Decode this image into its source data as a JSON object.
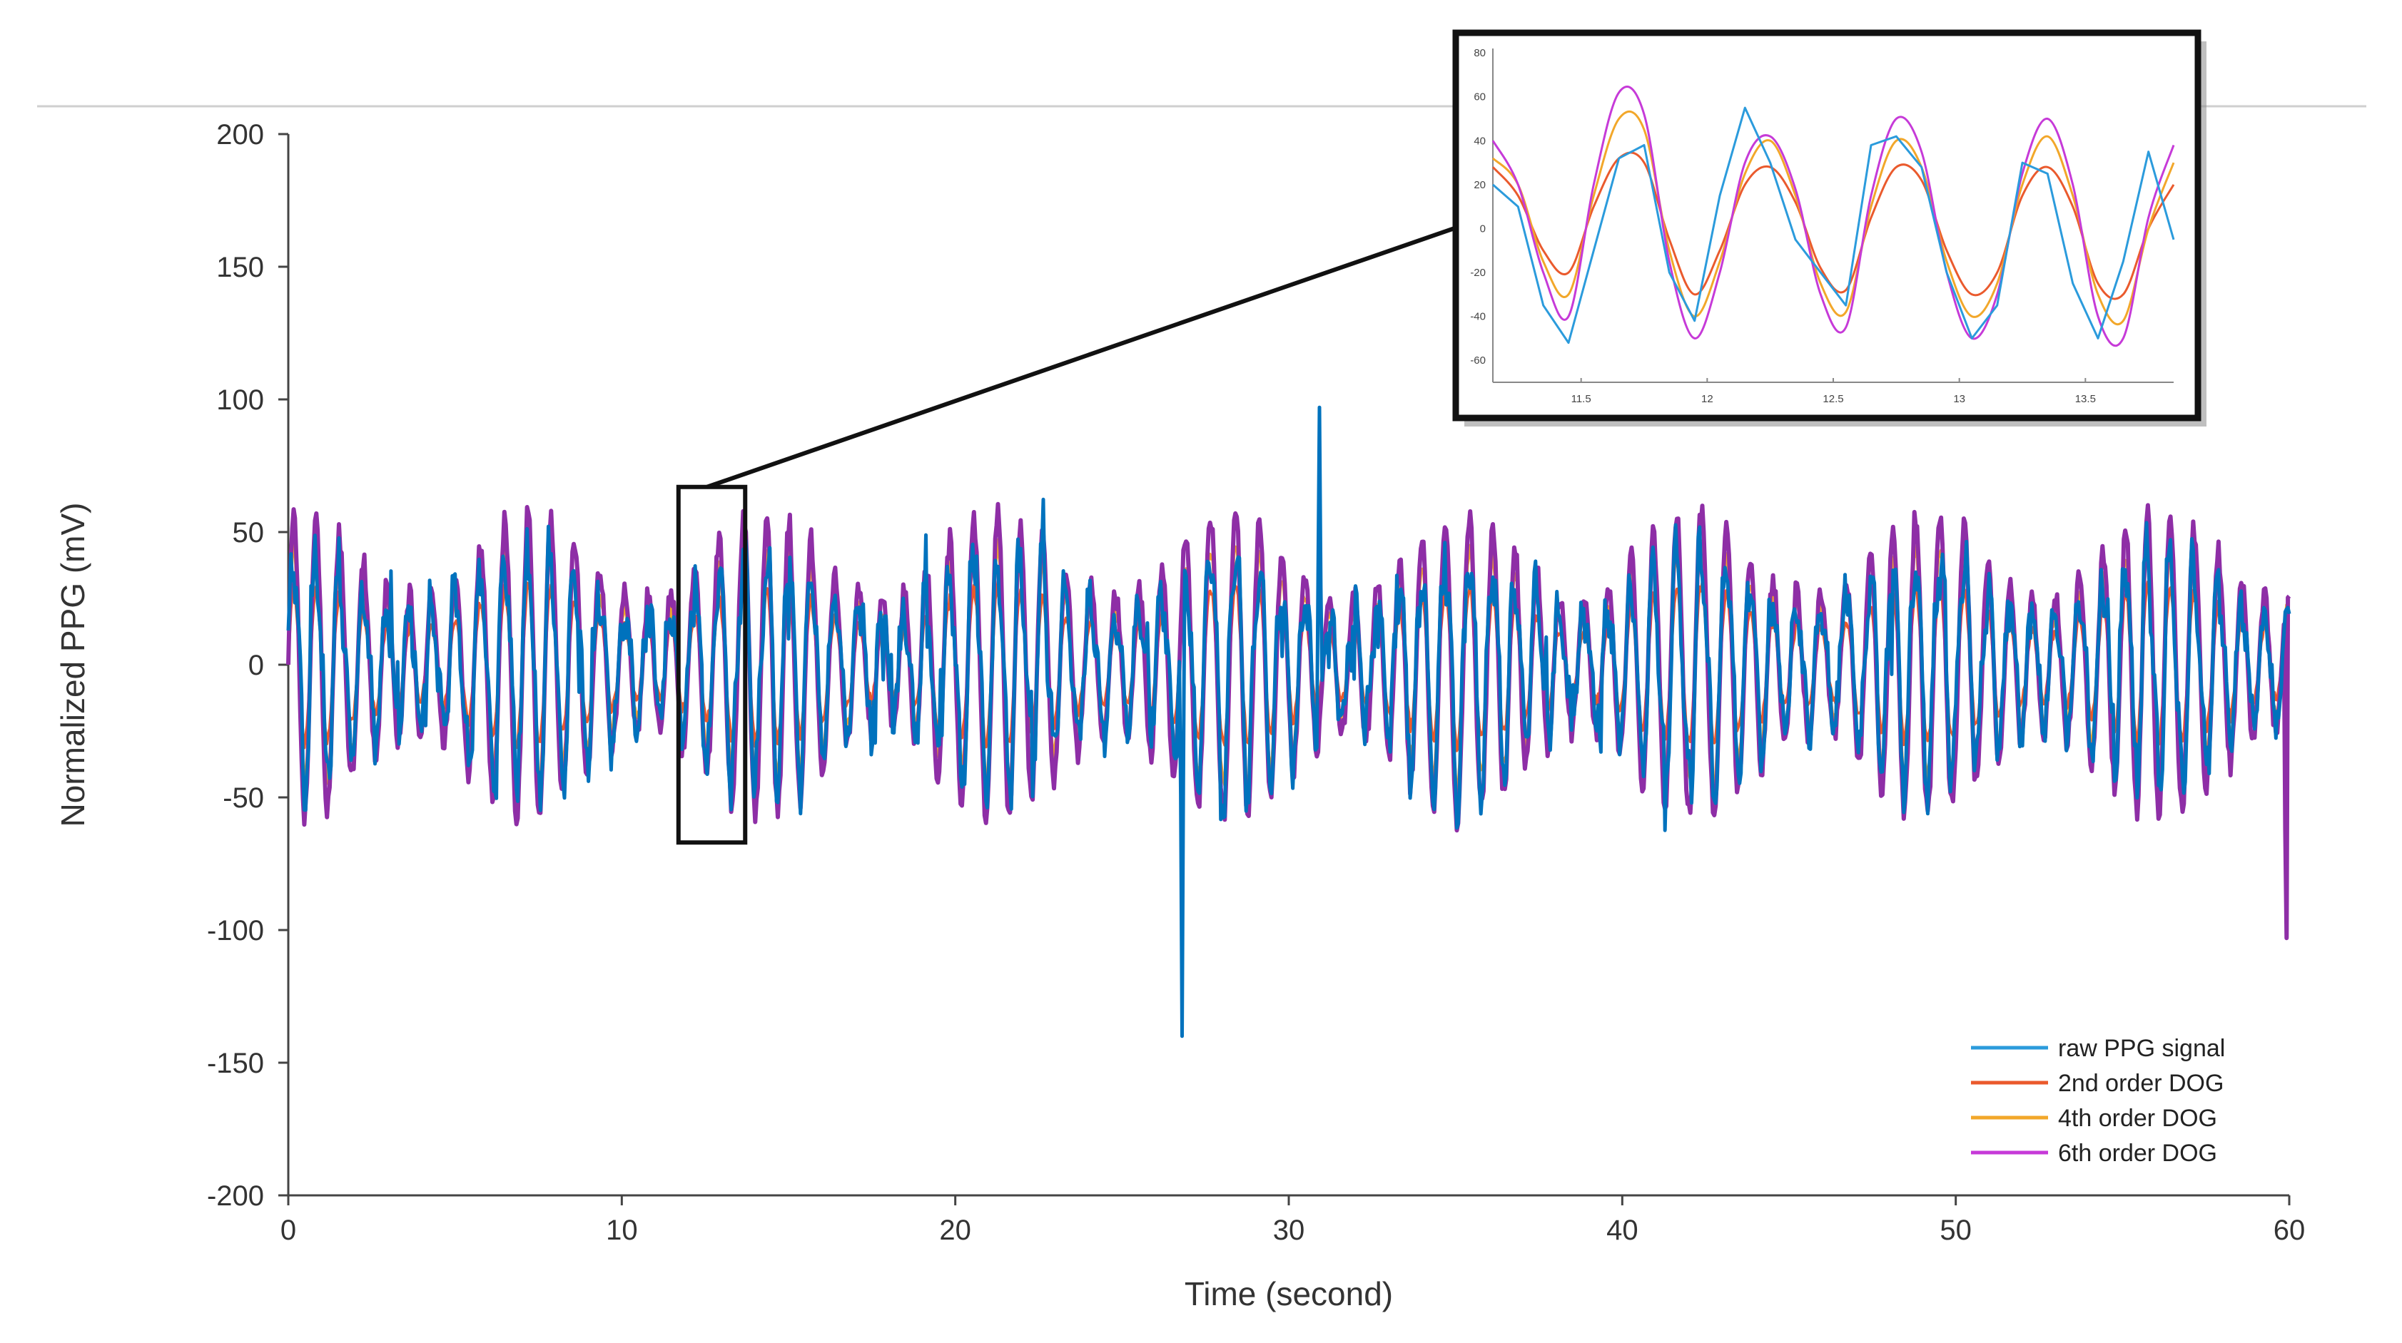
{
  "chart_data": {
    "type": "line",
    "title": "",
    "xlabel": "Time (second)",
    "ylabel": "Normalized PPG (mV)",
    "xlim": [
      0,
      60
    ],
    "ylim": [
      -200,
      200
    ],
    "xticks": [
      "0",
      "10",
      "20",
      "30",
      "40",
      "50",
      "60"
    ],
    "yticks": [
      "200",
      "150",
      "100",
      "50",
      "0",
      "-50",
      "-100",
      "-150",
      "-200"
    ],
    "grid": false,
    "legend_position": "bottom-right",
    "colors": {
      "raw": "#0072bd",
      "dog2": "#ea5a2d",
      "dog4": "#f2a72a",
      "dog6": "#8e2ea6",
      "dog6_inset": "#c63ad8",
      "raw_inset": "#2b9bdc"
    },
    "series": [
      {
        "name": "raw PPG signal",
        "key": "raw",
        "description_values": {
          "approx_amplitude": 45,
          "min": -140,
          "min_at": 26.8,
          "max": 97,
          "max_at": 30.9
        }
      },
      {
        "name": "2nd order DOG",
        "key": "dog2",
        "description_values": {
          "approx_amplitude": 30
        }
      },
      {
        "name": "4th order DOG",
        "key": "dog4",
        "description_values": {
          "approx_amplitude": 45
        }
      },
      {
        "name": "6th order DOG",
        "key": "dog6",
        "description_values": {
          "approx_amplitude": 55,
          "min": -103,
          "min_at": 59.9
        }
      }
    ],
    "zoom_region": {
      "x": [
        11.7,
        13.7
      ],
      "y": [
        -67,
        67
      ]
    },
    "inset": {
      "xlim": [
        11.15,
        13.85
      ],
      "ylim": [
        -70,
        82
      ],
      "xticks": [
        "11.5",
        "12",
        "12.5",
        "13",
        "13.5"
      ],
      "yticks": [
        "80",
        "60",
        "40",
        "20",
        "0",
        "-20",
        "-40",
        "-60"
      ],
      "samples": {
        "x": [
          11.15,
          11.25,
          11.35,
          11.45,
          11.55,
          11.65,
          11.75,
          11.85,
          11.95,
          12.05,
          12.15,
          12.25,
          12.35,
          12.45,
          12.55,
          12.65,
          12.75,
          12.85,
          12.95,
          13.05,
          13.15,
          13.25,
          13.35,
          13.45,
          13.55,
          13.65,
          13.75,
          13.85
        ],
        "raw": [
          20,
          10,
          -35,
          -52,
          -10,
          32,
          38,
          -20,
          -42,
          15,
          55,
          30,
          -5,
          -20,
          -35,
          38,
          42,
          28,
          -20,
          -50,
          -35,
          30,
          25,
          -25,
          -50,
          -15,
          35,
          -5
        ],
        "dog2": [
          28,
          15,
          -10,
          -20,
          10,
          32,
          30,
          -5,
          -30,
          -10,
          20,
          28,
          12,
          -18,
          -28,
          5,
          28,
          22,
          -10,
          -30,
          -20,
          15,
          28,
          10,
          -25,
          -30,
          0,
          20
        ],
        "dog4": [
          32,
          20,
          -15,
          -30,
          15,
          50,
          45,
          -10,
          -40,
          -15,
          25,
          40,
          15,
          -25,
          -38,
          10,
          40,
          28,
          -15,
          -40,
          -25,
          20,
          42,
          15,
          -30,
          -42,
          0,
          30
        ],
        "dog6": [
          40,
          20,
          -20,
          -40,
          20,
          62,
          52,
          -15,
          -50,
          -20,
          30,
          42,
          18,
          -30,
          -45,
          15,
          50,
          35,
          -20,
          -50,
          -30,
          25,
          50,
          20,
          -40,
          -50,
          5,
          38
        ]
      }
    }
  }
}
